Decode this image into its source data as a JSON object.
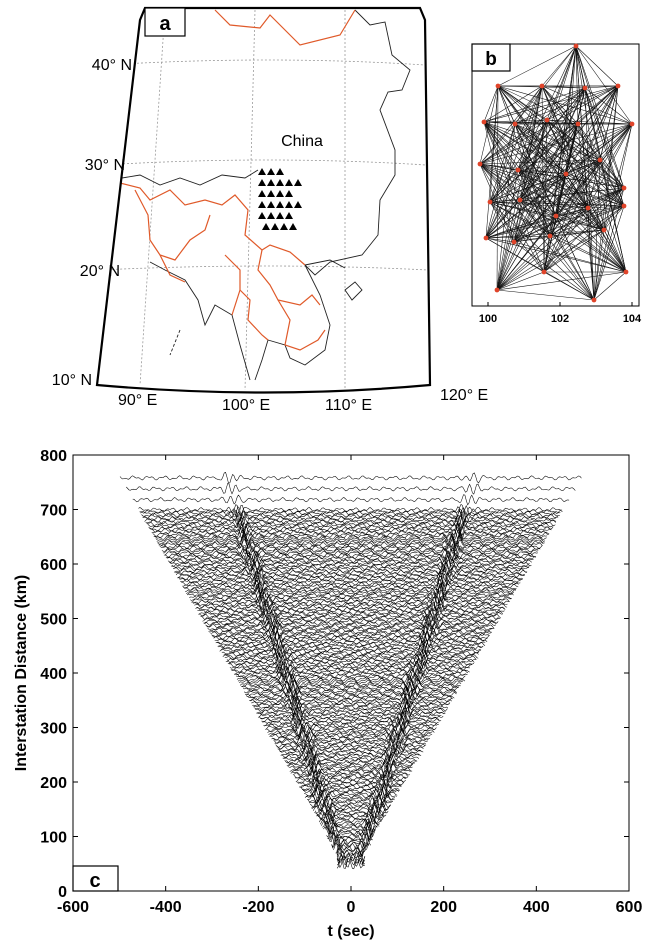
{
  "panel_a": {
    "letter": "a",
    "country_label": "China",
    "lat_labels": [
      "40° N",
      "30° N",
      "20° N",
      "10° N"
    ],
    "lon_labels": [
      "90° E",
      "100° E",
      "110° E",
      "120° E"
    ],
    "station_count": 25,
    "border_color": "#e05a2a"
  },
  "panel_b": {
    "letter": "b",
    "x_ticks": [
      "100",
      "102",
      "104"
    ],
    "station_color": "#e0442a"
  },
  "chart_data": [
    {
      "type": "line",
      "panel": "c",
      "xlabel": "t (sec)",
      "ylabel": "Interstation Distance (km)",
      "xlim": [
        -600,
        600
      ],
      "ylim": [
        0,
        800
      ],
      "xticks": [
        -600,
        -400,
        -200,
        0,
        200,
        400,
        600
      ],
      "yticks": [
        0,
        100,
        200,
        300,
        400,
        500,
        600,
        700,
        800
      ],
      "grid": false,
      "record_window": {
        "min_distance_km": 50,
        "max_distance_km": 760,
        "half_width_sec_at_max": 500
      },
      "arrival_moveout": [
        {
          "name": "",
          "t_sec": [
            -30,
            -245
          ],
          "distance_km": [
            80,
            700
          ]
        },
        {
          "name": "",
          "t_sec": [
            30,
            245
          ],
          "distance_km": [
            80,
            700
          ]
        }
      ]
    }
  ]
}
